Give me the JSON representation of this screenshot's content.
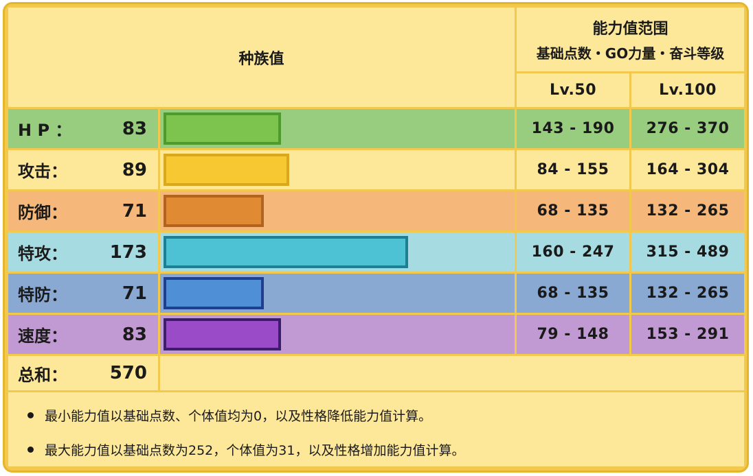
{
  "header": {
    "base_stats_label": "种族值",
    "range_title": "能力值范围",
    "range_subtitle": "基础点数・GO力量・奋斗等级",
    "lv50_label": "Lv.50",
    "lv100_label": "Lv.100"
  },
  "chart_data": {
    "type": "bar",
    "categories": [
      "H P ：",
      "攻击：",
      "防御：",
      "特攻：",
      "特防：",
      "速度："
    ],
    "values": [
      83,
      89,
      71,
      173,
      71,
      83
    ],
    "bar_max": 255,
    "lv50_ranges": [
      "143 - 190",
      "84 - 155",
      "68 - 135",
      "160 - 247",
      "68 - 135",
      "79 - 148"
    ],
    "lv100_ranges": [
      "276 - 370",
      "164 - 304",
      "132 - 265",
      "315 - 489",
      "132 - 265",
      "153 - 291"
    ],
    "colors": [
      {
        "row": "#98cc7e",
        "cell": "#98cc7e",
        "fill": "#7cc44e",
        "border": "#4e9a2e"
      },
      {
        "row": "#fde89a",
        "cell": "#fde89a",
        "fill": "#f7c832",
        "border": "#d9a81e"
      },
      {
        "row": "#f6b87a",
        "cell": "#f6b87a",
        "fill": "#e08a34",
        "border": "#b06420"
      },
      {
        "row": "#a6dbe2",
        "cell": "#a6dbe2",
        "fill": "#4cc2d4",
        "border": "#1e7f92"
      },
      {
        "row": "#89a8d2",
        "cell": "#89a8d2",
        "fill": "#4f8fd6",
        "border": "#1f3f8e"
      },
      {
        "row": "#c19ad4",
        "cell": "#c19ad4",
        "fill": "#9a4cc8",
        "border": "#3a1e66"
      }
    ]
  },
  "total": {
    "label": "总和：",
    "value": "570"
  },
  "notes": [
    "最小能力值以基础点数、个体值均为0，以及性格降低能力值计算。",
    "最大能力值以基础点数为252，个体值为31，以及性格增加能力值计算。"
  ]
}
